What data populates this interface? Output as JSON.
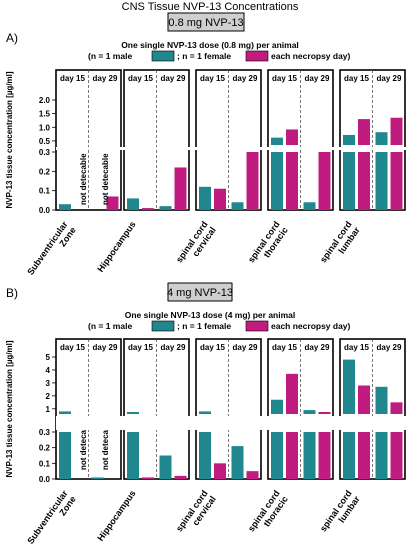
{
  "title": "CNS Tissue NVP-13 Concentrations",
  "colors": {
    "male": "#21878f",
    "female": "#c01c7f",
    "dashed": "#555555"
  },
  "chart_data": [
    {
      "type": "bar",
      "panel_label": "A)",
      "dose_label": "0.8 mg NVP-13",
      "legend_title": "One single NVP-13 dose (0.8 mg) per animal",
      "legend_prefix": "(n = 1 male",
      "legend_mid": "; n = 1 female",
      "legend_suffix": "each necropsy day)",
      "ylabel": "NVP-13 tissue concentration [µg/ml]",
      "day_labels": [
        "day 15",
        "day 29"
      ],
      "y_ticks_lower": [
        "0.0",
        "0.1",
        "0.2",
        "0.3"
      ],
      "y_ticks_upper": [
        "0.5",
        "1.0",
        "1.5",
        "2.0"
      ],
      "categories": [
        "Subventricular Zone",
        "Hippocampus",
        "spinal cord cervical",
        "spinal cord thoracic",
        "spinal cord lumbar"
      ],
      "series": [
        {
          "name": "male",
          "day15": [
            0.03,
            0.06,
            0.12,
            0.62,
            0.72
          ],
          "day29": [
            null,
            0.02,
            0.04,
            0.04,
            0.82
          ]
        },
        {
          "name": "female",
          "day15": [
            null,
            0.01,
            0.11,
            0.92,
            1.3
          ],
          "day29": [
            0.07,
            0.22,
            0.3,
            0.3,
            1.35
          ]
        }
      ],
      "annotations": [
        "not detecable",
        "not detecable"
      ]
    },
    {
      "type": "bar",
      "panel_label": "B)",
      "dose_label": "4 mg NVP-13",
      "legend_title": "One single NVP-13 dose (4 mg) per animal",
      "legend_prefix": "(n = 1 male",
      "legend_mid": "; n = 1 female",
      "legend_suffix": "each necropsy day)",
      "ylabel": "NVP-13 tissue concentration [µg/ml]",
      "day_labels": [
        "day 15",
        "day 29"
      ],
      "y_ticks_lower": [
        "0.0",
        "0.1",
        "0.2",
        "0.3"
      ],
      "y_ticks_upper": [
        "1",
        "2",
        "3",
        "4",
        "5"
      ],
      "categories": [
        "Subventricular Zone",
        "Hippocampus",
        "spinal cord cervical",
        "spinal cord thoracic",
        "spinal cord lumbar"
      ],
      "series": [
        {
          "name": "male",
          "day15": [
            0.8,
            0.7,
            0.8,
            1.7,
            4.8
          ],
          "day29": [
            0.01,
            0.15,
            0.21,
            0.9,
            2.7
          ]
        },
        {
          "name": "female",
          "day15": [
            null,
            0.01,
            0.1,
            3.7,
            2.8
          ],
          "day29": [
            null,
            0.02,
            0.05,
            0.6,
            1.5
          ]
        }
      ],
      "annotations": [
        "not detecable",
        "not detecable"
      ]
    }
  ]
}
